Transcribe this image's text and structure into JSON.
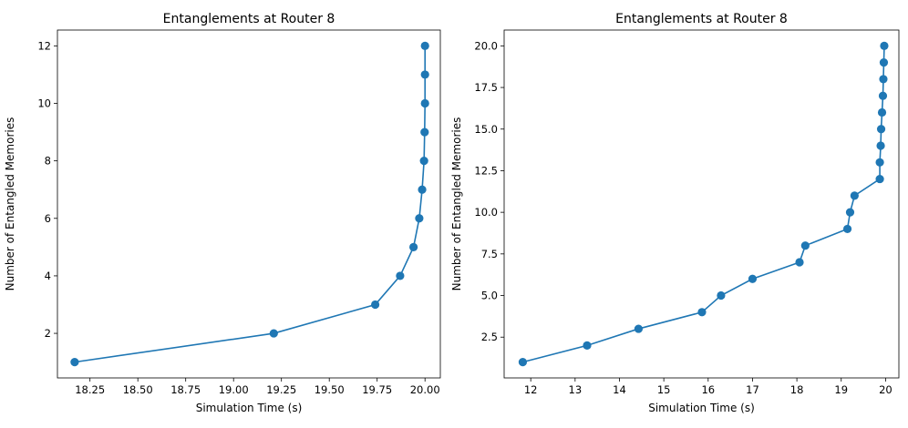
{
  "chart_data": [
    {
      "type": "line",
      "title": "Entanglements at Router 8",
      "xlabel": "Simulation Time (s)",
      "ylabel": "Number of Entangled Memories",
      "xlim": [
        18.08,
        20.08
      ],
      "ylim": [
        0.45,
        12.55
      ],
      "xticks": [
        18.25,
        18.5,
        18.75,
        19.0,
        19.25,
        19.5,
        19.75,
        20.0
      ],
      "xtick_labels": [
        "18.25",
        "18.50",
        "18.75",
        "19.00",
        "19.25",
        "19.50",
        "19.75",
        "20.00"
      ],
      "yticks": [
        2,
        4,
        6,
        8,
        10,
        12
      ],
      "ytick_labels": [
        "2",
        "4",
        "6",
        "8",
        "10",
        "12"
      ],
      "grid": false,
      "color": "#1f77b4",
      "series": [
        {
          "x": [
            18.17,
            19.21,
            19.74,
            19.87,
            19.94,
            19.97,
            19.985,
            19.995,
            19.998,
            20.0,
            20.0,
            20.0
          ],
          "y": [
            1,
            2,
            3,
            4,
            5,
            6,
            7,
            8,
            9,
            10,
            11,
            12
          ]
        }
      ]
    },
    {
      "type": "line",
      "title": "Entanglements at Router 8",
      "xlabel": "Simulation Time (s)",
      "ylabel": "Number of Entangled Memories",
      "xlim": [
        11.4,
        20.3
      ],
      "ylim": [
        0.05,
        20.95
      ],
      "xticks": [
        12,
        13,
        14,
        15,
        16,
        17,
        18,
        19,
        20
      ],
      "xtick_labels": [
        "12",
        "13",
        "14",
        "15",
        "16",
        "17",
        "18",
        "19",
        "20"
      ],
      "yticks": [
        2.5,
        5.0,
        7.5,
        10.0,
        12.5,
        15.0,
        17.5,
        20.0
      ],
      "ytick_labels": [
        "2.5",
        "5.0",
        "7.5",
        "10.0",
        "12.5",
        "15.0",
        "17.5",
        "20.0"
      ],
      "grid": false,
      "color": "#1f77b4",
      "series": [
        {
          "x": [
            11.82,
            13.27,
            14.43,
            15.86,
            16.29,
            17.0,
            18.06,
            18.19,
            19.14,
            19.2,
            19.3,
            19.87,
            19.87,
            19.89,
            19.9,
            19.92,
            19.94,
            19.95,
            19.96,
            19.97
          ],
          "y": [
            1,
            2,
            3,
            4,
            5,
            6,
            7,
            8,
            9,
            10,
            11,
            12,
            13,
            14,
            15,
            16,
            17,
            18,
            19,
            20
          ]
        }
      ]
    }
  ]
}
